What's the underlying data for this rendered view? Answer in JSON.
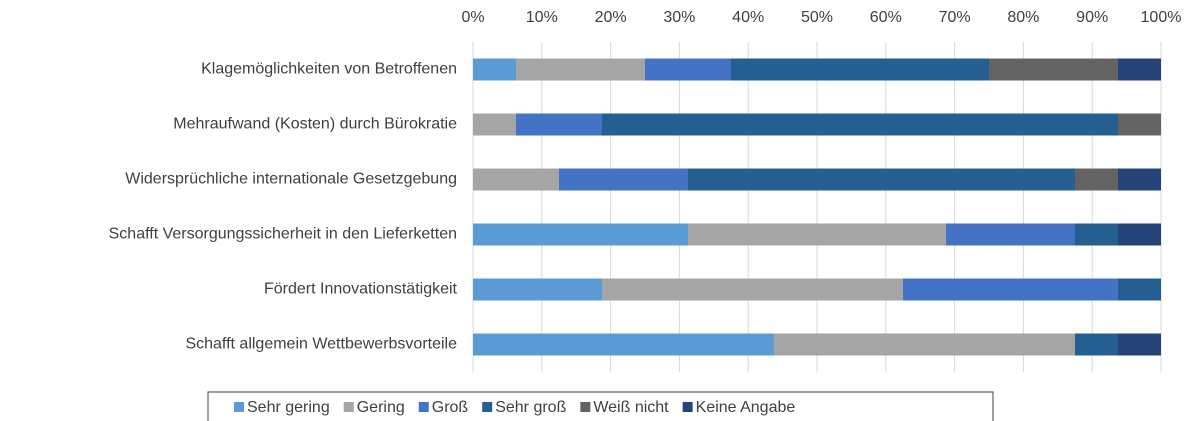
{
  "chart_data": {
    "type": "stacked-bar-horizontal",
    "categories": [
      "Klagemöglichkeiten von Betroffenen",
      "Mehraufwand (Kosten) durch Bürokratie",
      "Widersprüchliche internationale Gesetzgebung",
      "Schafft Versorgungssicherheit in den Lieferketten",
      "Fördert Innovationstätigkeit",
      "Schafft allgemein Wettbewerbsvorteile"
    ],
    "series": [
      {
        "name": "Sehr gering",
        "color": "#5b9bd5",
        "values": [
          6.25,
          0,
          0,
          31.25,
          18.75,
          43.75
        ]
      },
      {
        "name": "Gering",
        "color": "#a5a5a5",
        "values": [
          18.75,
          6.25,
          12.5,
          37.5,
          43.75,
          43.75
        ]
      },
      {
        "name": "Groß",
        "color": "#4472c4",
        "values": [
          12.5,
          12.5,
          18.75,
          18.75,
          31.25,
          0
        ]
      },
      {
        "name": "Sehr groß",
        "color": "#255e91",
        "values": [
          37.5,
          75,
          56.25,
          6.25,
          6.25,
          6.25
        ]
      },
      {
        "name": "Weiß nicht",
        "color": "#636363",
        "values": [
          18.75,
          6.25,
          6.25,
          0,
          0,
          0
        ]
      },
      {
        "name": "Keine Angabe",
        "color": "#264478",
        "values": [
          6.25,
          0,
          6.25,
          6.25,
          0,
          6.25
        ]
      }
    ],
    "xlim": [
      0,
      100
    ],
    "xticks": [
      {
        "value": 0,
        "label": "0%"
      },
      {
        "value": 10,
        "label": "10%"
      },
      {
        "value": 20,
        "label": "20%"
      },
      {
        "value": 30,
        "label": "30%"
      },
      {
        "value": 40,
        "label": "40%"
      },
      {
        "value": 50,
        "label": "50%"
      },
      {
        "value": 60,
        "label": "60%"
      },
      {
        "value": 70,
        "label": "70%"
      },
      {
        "value": 80,
        "label": "80%"
      },
      {
        "value": 90,
        "label": "90%"
      },
      {
        "value": 100,
        "label": "100%"
      }
    ],
    "grid": true,
    "legend": "bottom"
  }
}
